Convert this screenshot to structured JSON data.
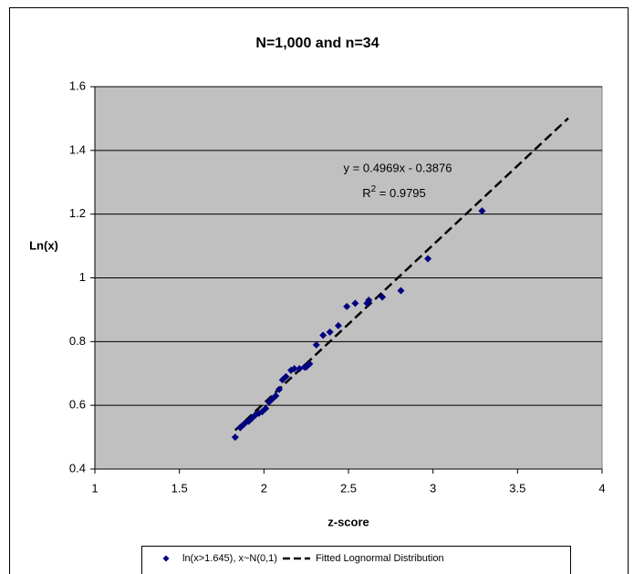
{
  "chart_data": {
    "type": "scatter",
    "title": "N=1,000 and n=34",
    "x_label": "z-score",
    "y_label": "Ln(x)",
    "xlim": [
      1,
      4
    ],
    "xticks": [
      1,
      1.5,
      2,
      2.5,
      3,
      3.5,
      4
    ],
    "ylim": [
      0.4,
      1.6
    ],
    "yticks": [
      0.4,
      0.6,
      0.8,
      1,
      1.2,
      1.4,
      1.6
    ],
    "grid": true,
    "legend": "bottom",
    "annotations": {
      "equation": "y = 0.4969x - 0.3876",
      "r2_base": "R",
      "r2_sup": "2",
      "r2_rest": " = 0.9795"
    },
    "series": [
      {
        "name": "ln(x>1.645), x~N(0,1)",
        "style": "markers",
        "color": "#000080",
        "x": [
          1.83,
          1.86,
          1.88,
          1.89,
          1.91,
          1.93,
          1.95,
          1.97,
          1.99,
          2.01,
          2.03,
          2.05,
          2.07,
          2.09,
          2.11,
          2.13,
          2.16,
          2.18,
          2.21,
          2.24,
          2.25,
          2.27,
          2.31,
          2.35,
          2.39,
          2.44,
          2.49,
          2.54,
          2.61,
          2.62,
          2.7,
          2.81,
          2.97,
          3.29
        ],
        "values": [
          0.5,
          0.53,
          0.54,
          0.545,
          0.55,
          0.56,
          0.57,
          0.575,
          0.58,
          0.59,
          0.61,
          0.62,
          0.63,
          0.65,
          0.68,
          0.69,
          0.71,
          0.715,
          0.715,
          0.72,
          0.72,
          0.73,
          0.79,
          0.82,
          0.83,
          0.85,
          0.91,
          0.92,
          0.92,
          0.93,
          0.94,
          0.96,
          1.06,
          1.21
        ]
      },
      {
        "name": "Fitted Lognormal Distribution",
        "style": "dashed-line",
        "color": "#000000",
        "x": [
          1.83,
          3.8
        ],
        "values": [
          0.522,
          1.501
        ]
      }
    ]
  }
}
